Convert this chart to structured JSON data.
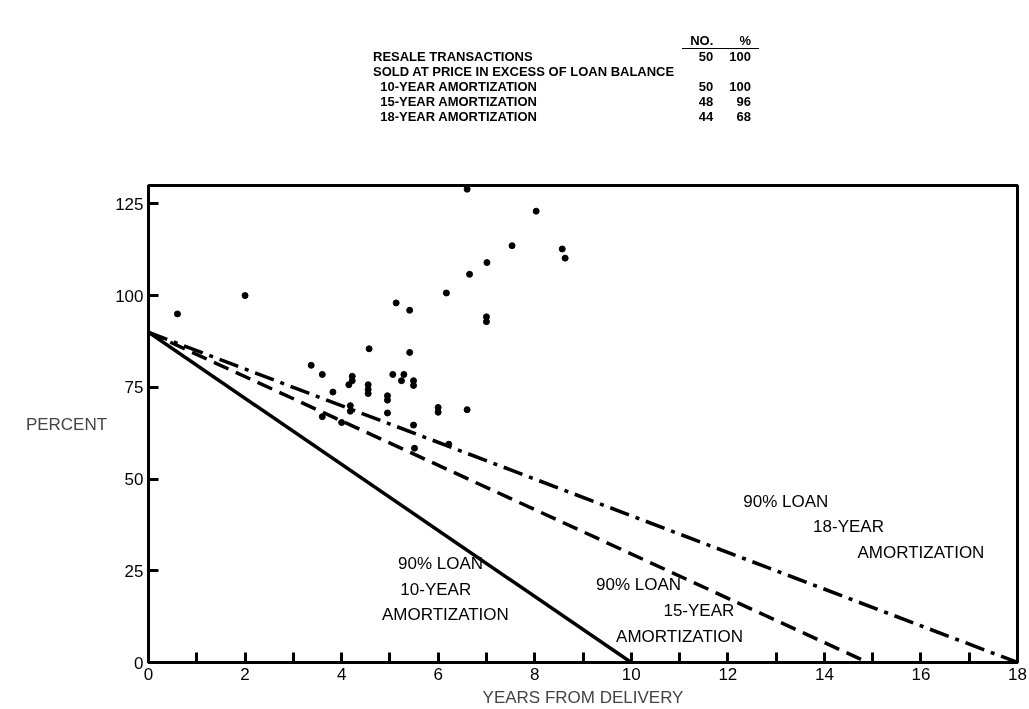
{
  "chart_data": {
    "type": "line",
    "xlabel": "YEARS FROM DELIVERY",
    "ylabel": "PERCENT",
    "xlim": [
      0,
      18
    ],
    "ylim": [
      0,
      130
    ],
    "xticks": [
      0,
      {
        "value": 1,
        "label": null
      },
      2,
      {
        "value": 3,
        "label": null
      },
      4,
      {
        "value": 5,
        "label": null
      },
      6,
      {
        "value": 7,
        "label": null
      },
      8,
      {
        "value": 9,
        "label": null
      },
      10,
      {
        "value": 11,
        "label": null
      },
      12,
      {
        "value": 13,
        "label": null
      },
      14,
      {
        "value": 15,
        "label": null
      },
      16,
      {
        "value": 17,
        "label": null
      },
      18
    ],
    "yticks": [
      0,
      25,
      50,
      75,
      100,
      125
    ],
    "grid": false,
    "series": [
      {
        "color": "#000000",
        "line_style": "solid",
        "marker": "none",
        "x": [
          0,
          10
        ],
        "values": [
          90,
          0
        ]
      },
      {
        "color": "#000000",
        "line_style": "dashed",
        "marker": "none",
        "x": [
          0,
          14.9
        ],
        "values": [
          90,
          0
        ]
      },
      {
        "color": "#000000",
        "line_style": "dashdot",
        "marker": "none",
        "x": [
          0,
          18
        ],
        "values": [
          90,
          0
        ]
      },
      {
        "type": "scatter",
        "color": "#000000",
        "marker": "circle",
        "x": [
          0.6,
          2.0,
          6.6,
          6.65,
          6.17,
          5.13,
          5.41,
          4.57,
          5.41,
          3.37,
          3.6,
          3.82,
          4.22,
          4.22,
          4.15,
          4.55,
          4.55,
          4.55,
          5.06,
          5.29,
          5.24,
          5.49,
          5.49,
          4.95,
          4.95,
          4.95,
          6.0,
          6.0,
          6.6,
          4.18,
          4.18,
          3.6,
          4.0,
          5.49,
          6.22,
          5.51,
          8.03,
          7.53,
          7.01,
          8.57,
          8.63,
          7.0,
          7.0
        ],
        "values": [
          95,
          100,
          129,
          105.8,
          100.7,
          98,
          96,
          85.5,
          84.5,
          81,
          78.5,
          73.7,
          78,
          76.8,
          75.7,
          75.7,
          74.4,
          73.3,
          78.5,
          78.5,
          76.8,
          76.8,
          75.5,
          72.7,
          71.5,
          68,
          69.5,
          68.2,
          68.9,
          70,
          68.5,
          67,
          65.4,
          64.7,
          59.5,
          58.4,
          123,
          113.6,
          109,
          112.7,
          110.2,
          94.2,
          92.9
        ]
      }
    ],
    "annotations": [
      "\tNO.\t%",
      "RESALE TRANSACTIONS\t50\t100",
      "SOLD AT PRICE IN EXCESS OF LOAN BALANCE\t\t",
      "  10-YEAR AMORTIZATION\t50\t100",
      "  15-YEAR AMORTIZATION\t48\t96",
      "  18-YEAR AMORTIZATION\t44\t68",
      "90% LOAN\n10-YEAR\nAMORTIZATION",
      "90% LOAN\n15-YEAR\nAMORTIZATION",
      "90% LOAN\n18-YEAR\nAMORTIZATION"
    ]
  }
}
